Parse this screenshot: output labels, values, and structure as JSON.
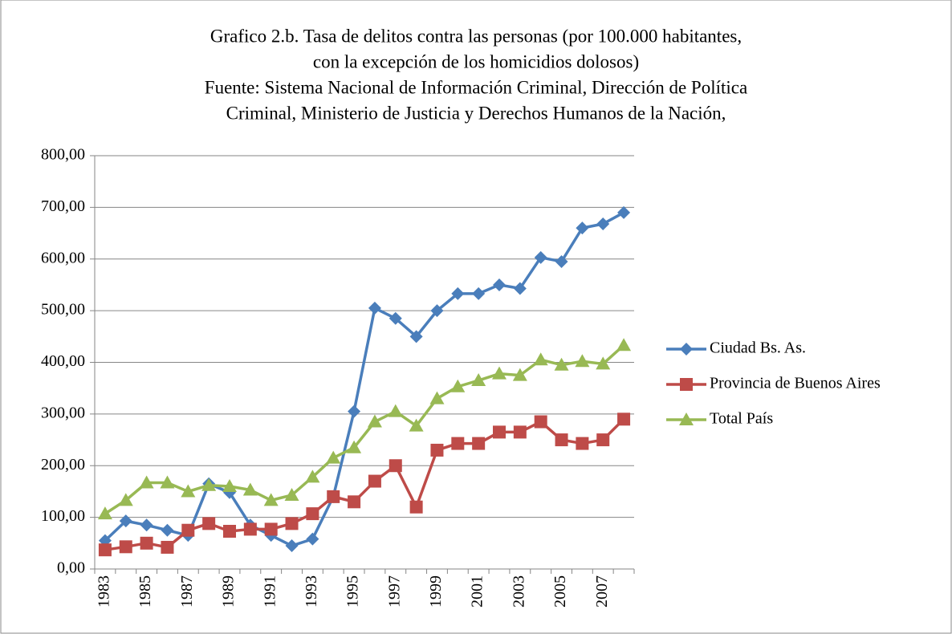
{
  "chart_data": {
    "type": "line",
    "title": [
      "Grafico 2.b. Tasa de delitos contra las personas (por 100.000 habitantes,",
      "con la excepción de los homicidios dolosos)",
      "Fuente: Sistema Nacional de Información Criminal, Dirección de Política",
      "Criminal, Ministerio de Justicia y Derechos Humanos de la Nación,"
    ],
    "categories": [
      "1983",
      null,
      "1985",
      null,
      "1987",
      null,
      "1989",
      null,
      "1991",
      null,
      "1993",
      null,
      "1995",
      null,
      "1997",
      null,
      "1999",
      null,
      "2001",
      null,
      "2003",
      null,
      "2005",
      null,
      "2007",
      null
    ],
    "series": [
      {
        "name": "Ciudad Bs. As.",
        "color": "#4a7ebb",
        "marker": "diamond",
        "values": [
          55,
          93,
          85,
          75,
          65,
          165,
          148,
          85,
          65,
          45,
          58,
          140,
          305,
          505,
          485,
          450,
          500,
          533,
          533,
          550,
          543,
          603,
          595,
          660,
          668,
          690
        ]
      },
      {
        "name": "Provincia de Buenos Aires",
        "color": "#be4b48",
        "marker": "square",
        "values": [
          37,
          43,
          50,
          42,
          75,
          88,
          73,
          77,
          77,
          88,
          107,
          140,
          130,
          170,
          200,
          120,
          230,
          243,
          243,
          265,
          265,
          285,
          250,
          243,
          250,
          290
        ]
      },
      {
        "name": "Total País",
        "color": "#98b954",
        "marker": "triangle",
        "values": [
          107,
          133,
          167,
          167,
          150,
          162,
          160,
          153,
          133,
          143,
          178,
          215,
          235,
          285,
          305,
          277,
          330,
          353,
          365,
          378,
          375,
          405,
          395,
          402,
          397,
          433
        ]
      }
    ],
    "ylim": [
      0,
      800
    ],
    "yticks": [
      {
        "value": 0,
        "label": "0,00"
      },
      {
        "value": 100,
        "label": "100,00"
      },
      {
        "value": 200,
        "label": "200,00"
      },
      {
        "value": 300,
        "label": "300,00"
      },
      {
        "value": 400,
        "label": "400,00"
      },
      {
        "value": 500,
        "label": "500,00"
      },
      {
        "value": 600,
        "label": "600,00"
      },
      {
        "value": 700,
        "label": "700,00"
      },
      {
        "value": 800,
        "label": "800,00"
      }
    ],
    "grid": true,
    "legend": "right"
  }
}
